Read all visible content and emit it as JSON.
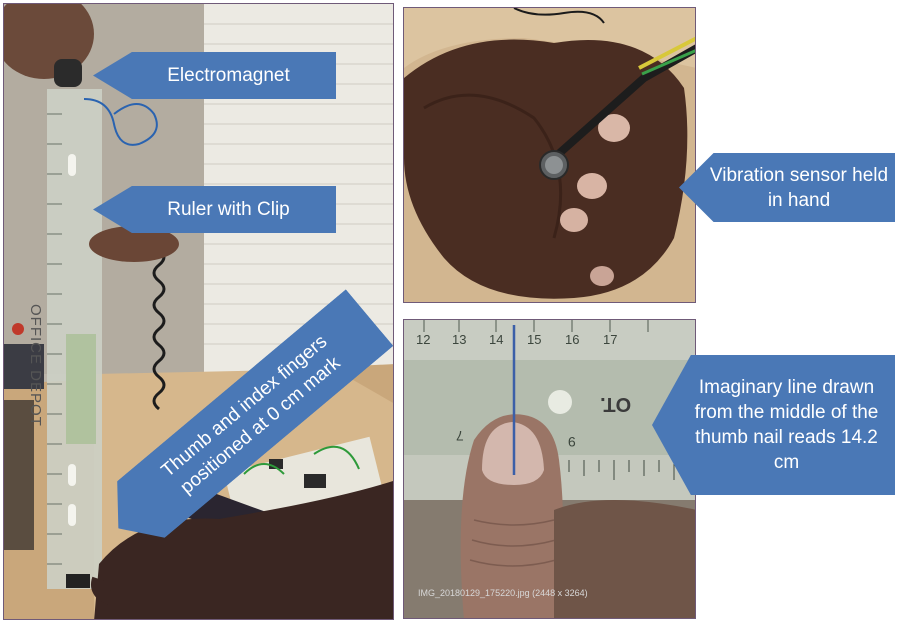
{
  "labels": {
    "electromagnet": "Electromagnet",
    "ruler_clip": "Ruler with Clip",
    "thumb_index": "Thumb and index fingers positioned at 0 cm mark",
    "vibration_sensor": "Vibration sensor held in hand",
    "imaginary_line": "Imaginary line drawn from the middle of the thumb nail reads 14.2 cm"
  },
  "ruler_left_brand": "OFFICE DEPOT",
  "ruler_right_brand": "OT.",
  "ruler_right_ticks": [
    "12",
    "13",
    "14",
    "15",
    "16",
    "17"
  ],
  "ruler_right_inches": [
    "7",
    "9"
  ],
  "sensor_cable_text": "wire",
  "photo_caption": "IMG_20180129_175220.jpg (2448 x 3264)",
  "colors": {
    "callout": "#4a78b6",
    "measure_line": "#3b5fa8",
    "border": "#6f5a78"
  }
}
